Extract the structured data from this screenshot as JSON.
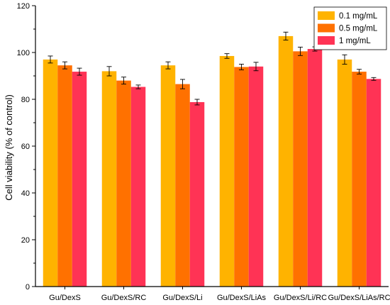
{
  "chart_data": {
    "type": "bar",
    "title": "",
    "xlabel": "",
    "ylabel": "Cell viability (% of control)",
    "ylim": [
      0,
      120
    ],
    "yticks": [
      0,
      20,
      40,
      60,
      80,
      100,
      120
    ],
    "grid": false,
    "legend_position": "top-right",
    "categories": [
      "Gu/DexS",
      "Gu/DexS/RC",
      "Gu/DexS/Li",
      "Gu/DexS/LiAs",
      "Gu/DexS/Li/RC",
      "Gu/DexS/LiAs/RC"
    ],
    "series": [
      {
        "name": "0.1 mg/mL",
        "color": "#FFB300",
        "values": [
          97,
          92,
          94.5,
          98.5,
          107,
          97
        ],
        "errors": [
          1.5,
          2.0,
          1.5,
          1.0,
          1.7,
          2.0
        ]
      },
      {
        "name": "0.5 mg/mL",
        "color": "#FF7100",
        "values": [
          94.5,
          88,
          86.5,
          93.8,
          100.5,
          91.8
        ],
        "errors": [
          1.5,
          1.5,
          2.0,
          1.2,
          1.8,
          1.0
        ]
      },
      {
        "name": "1 mg/mL",
        "color": "#FF3355",
        "values": [
          91.8,
          85.3,
          78.8,
          94,
          101.5,
          88.7
        ],
        "errors": [
          1.5,
          0.8,
          1.2,
          1.8,
          0.9,
          0.6
        ]
      }
    ]
  }
}
